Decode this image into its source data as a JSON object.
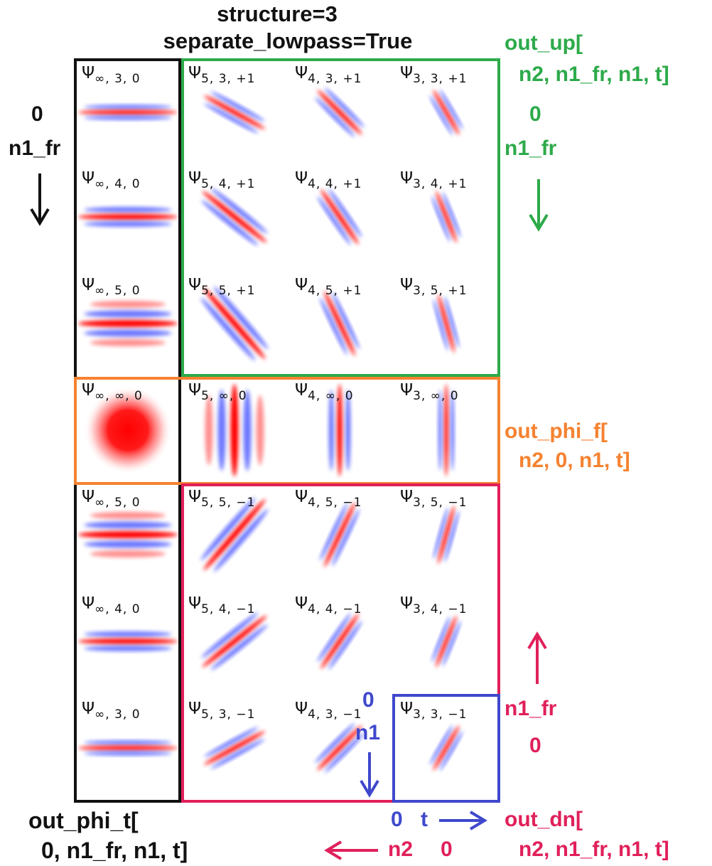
{
  "title": {
    "line1": "structure=3",
    "line2": "separate_lowpass=True"
  },
  "labels": {
    "out_up_1": "out_up[",
    "out_up_2": "n2, n1_fr, n1, t]",
    "green_zero": "0",
    "green_n1fr": "n1_fr",
    "left_zero": "0",
    "left_n1fr": "n1_fr",
    "out_phi_f_1": "out_phi_f[",
    "out_phi_f_2": "n2, 0, n1, t]",
    "red_n1fr": "n1_fr",
    "red_zero": "0",
    "blue_zero_n1": "0",
    "blue_n1": "n1",
    "blue_zero_t": "0",
    "blue_t": "t",
    "n2": "n2",
    "n2_zero": "0",
    "out_phi_t_1": "out_phi_t[",
    "out_phi_t_2": "0, n1_fr, n1, t]",
    "out_dn_1": "out_dn[",
    "out_dn_2": "n2, n1_fr, n1, t]"
  },
  "colors": {
    "black_frame": "#111111",
    "green_frame": "#2daa4a",
    "orange_frame": "#f58230",
    "crimson_frame": "#e0205a",
    "blue_frame": "#3f48cc",
    "wavelet_red": "#ff0000",
    "wavelet_blue": "#3040ff"
  },
  "rows": [
    {
      "cells": [
        {
          "sym": "Ψ",
          "sub": "∞, 3, 0"
        },
        {
          "sym": "Ψ",
          "sub": "5, 3, +1"
        },
        {
          "sym": "Ψ",
          "sub": "4, 3, +1"
        },
        {
          "sym": "Ψ",
          "sub": "3, 3, +1"
        }
      ]
    },
    {
      "cells": [
        {
          "sym": "Ψ",
          "sub": "∞, 4, 0"
        },
        {
          "sym": "Ψ",
          "sub": "5, 4, +1"
        },
        {
          "sym": "Ψ",
          "sub": "4, 4, +1"
        },
        {
          "sym": "Ψ",
          "sub": "3, 4, +1"
        }
      ]
    },
    {
      "cells": [
        {
          "sym": "Ψ",
          "sub": "∞, 5, 0"
        },
        {
          "sym": "Ψ",
          "sub": "5, 5, +1"
        },
        {
          "sym": "Ψ",
          "sub": "4, 5, +1"
        },
        {
          "sym": "Ψ",
          "sub": "3, 5, +1"
        }
      ]
    },
    {
      "cells": [
        {
          "sym": "Ψ",
          "sub": "∞, ∞, 0"
        },
        {
          "sym": "Ψ",
          "sub": "5, ∞, 0"
        },
        {
          "sym": "Ψ",
          "sub": "4, ∞, 0"
        },
        {
          "sym": "Ψ",
          "sub": "3, ∞, 0"
        }
      ]
    },
    {
      "cells": [
        {
          "sym": "Ψ",
          "sub": "∞, 5, 0"
        },
        {
          "sym": "Ψ",
          "sub": "5, 5, −1"
        },
        {
          "sym": "Ψ",
          "sub": "4, 5, −1"
        },
        {
          "sym": "Ψ",
          "sub": "3, 5, −1"
        }
      ]
    },
    {
      "cells": [
        {
          "sym": "Ψ",
          "sub": "∞, 4, 0"
        },
        {
          "sym": "Ψ",
          "sub": "5, 4, −1"
        },
        {
          "sym": "Ψ",
          "sub": "4, 4, −1"
        },
        {
          "sym": "Ψ",
          "sub": "3, 4, −1"
        }
      ]
    },
    {
      "cells": [
        {
          "sym": "Ψ",
          "sub": "∞, 3, 0"
        },
        {
          "sym": "Ψ",
          "sub": "5, 3, −1"
        },
        {
          "sym": "Ψ",
          "sub": "4, 3, −1"
        },
        {
          "sym": "Ψ",
          "sub": "3, 3, −1"
        }
      ]
    }
  ]
}
